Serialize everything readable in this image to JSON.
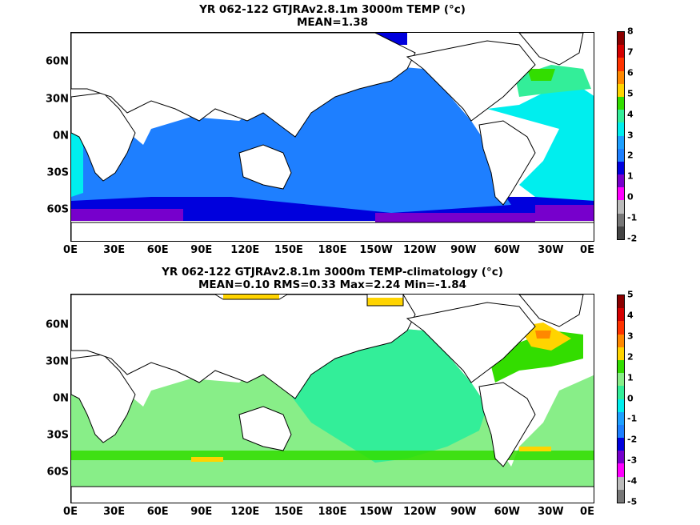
{
  "panels": [
    {
      "title_line1": "YR 062-122 GTJRAv2.8.1m 3000m TEMP (°c)",
      "title_line2": "MEAN=1.38",
      "colorbar_labels": [
        "8",
        "7",
        "6",
        "5",
        "4",
        "3",
        "2",
        "1",
        "0",
        "-1",
        "-2"
      ],
      "colorbar_colors": [
        "#8b0000",
        "#d40000",
        "#ff3300",
        "#ff8800",
        "#ffd400",
        "#33dd00",
        "#33ee99",
        "#00eeee",
        "#1ea0ff",
        "#1e7fff",
        "#0000dd",
        "#7700cc",
        "#ff00ff",
        "#bbbbbb",
        "#777777",
        "#444444"
      ]
    },
    {
      "title_line1": "YR 062-122 GTJRAv2.8.1m 3000m TEMP-climatology (°c)",
      "title_line2": "MEAN=0.10   RMS=0.33   Max=2.24   Min=-1.84",
      "colorbar_labels": [
        "5",
        "4",
        "3",
        "2",
        "1",
        "0",
        "-1",
        "-2",
        "-3",
        "-4",
        "-5"
      ],
      "colorbar_colors": [
        "#8b0000",
        "#d40000",
        "#ff3300",
        "#ff8800",
        "#ffd400",
        "#33dd00",
        "#88ee88",
        "#33ee99",
        "#00eeee",
        "#1ea0ff",
        "#1e7fff",
        "#0000dd",
        "#7700cc",
        "#ff00ff",
        "#bbbbbb",
        "#777777"
      ]
    }
  ],
  "x_tick_labels": [
    "0E",
    "30E",
    "60E",
    "90E",
    "120E",
    "150E",
    "180E",
    "150W",
    "120W",
    "90W",
    "60W",
    "30W",
    "0E"
  ],
  "y_tick_labels": [
    "60N",
    "30N",
    "0N",
    "30S",
    "60S"
  ]
}
